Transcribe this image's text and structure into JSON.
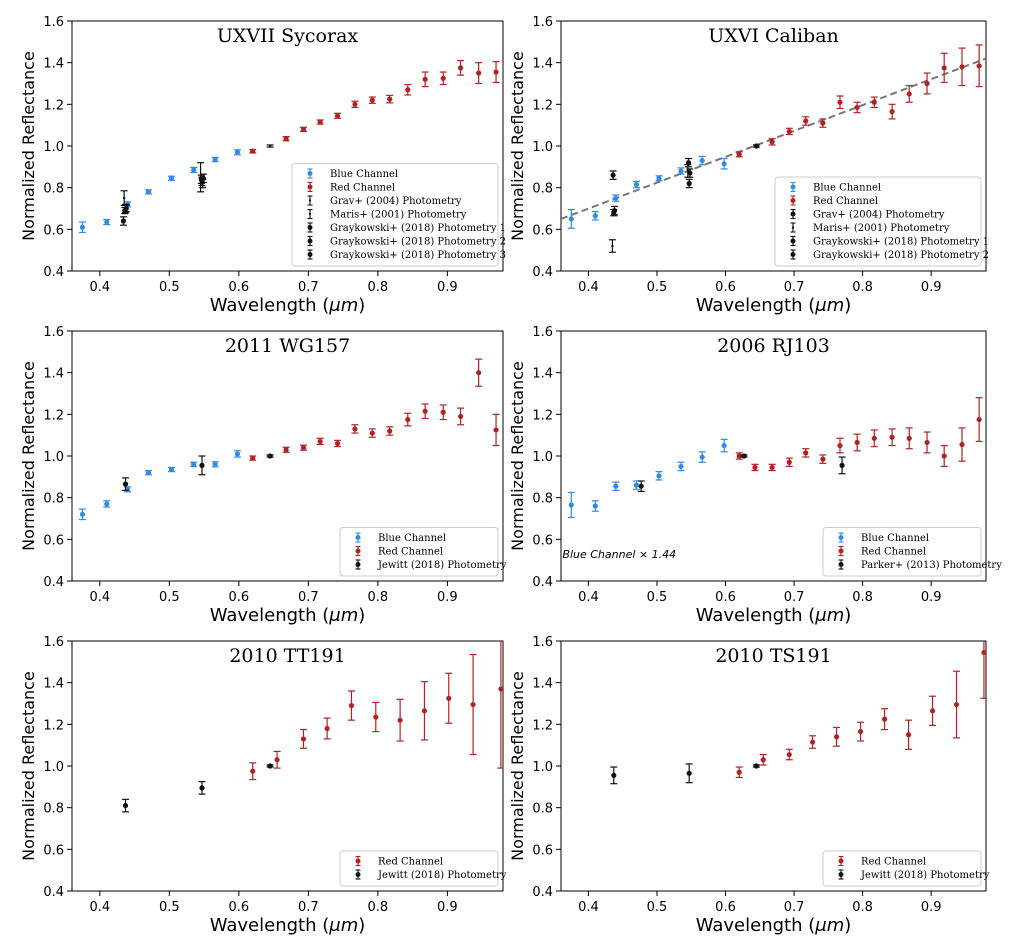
{
  "x_axis_label": "Wavelength (μm)",
  "y_axis_label": "Normalized Reflectance",
  "x_ticks": [
    0.4,
    0.5,
    0.6,
    0.7,
    0.8,
    0.9
  ],
  "y_ticks": [
    0.4,
    0.6,
    0.8,
    1.0,
    1.2,
    1.4,
    1.6
  ],
  "colors": {
    "blue": "#2e8ce8",
    "red": "#b22222",
    "black": "#111111",
    "fit_line": "#777777"
  },
  "chart_data": [
    {
      "type": "scatter",
      "title": "UXVII Sycorax",
      "xlabel": "Wavelength (μm)",
      "ylabel": "Normalized Reflectance",
      "xlim": [
        0.36,
        0.98
      ],
      "ylim": [
        0.4,
        1.6
      ],
      "legend_position": "lower-right",
      "series": [
        {
          "name": "Blue Channel",
          "color": "blue",
          "marker": "dot",
          "x": [
            0.375,
            0.41,
            0.44,
            0.47,
            0.503,
            0.535,
            0.566,
            0.598
          ],
          "y": [
            0.61,
            0.635,
            0.72,
            0.78,
            0.845,
            0.885,
            0.935,
            0.97
          ],
          "err": [
            0.025,
            0.012,
            0.012,
            0.01,
            0.01,
            0.012,
            0.01,
            0.012
          ]
        },
        {
          "name": "Red Channel",
          "color": "red",
          "marker": "dot",
          "x": [
            0.62,
            0.668,
            0.693,
            0.717,
            0.742,
            0.767,
            0.792,
            0.817,
            0.843,
            0.868,
            0.894,
            0.919,
            0.945,
            0.97
          ],
          "y": [
            0.975,
            1.035,
            1.08,
            1.115,
            1.145,
            1.2,
            1.22,
            1.225,
            1.27,
            1.32,
            1.325,
            1.375,
            1.35,
            1.355
          ],
          "err": [
            0.008,
            0.01,
            0.01,
            0.01,
            0.012,
            0.015,
            0.015,
            0.018,
            0.025,
            0.035,
            0.03,
            0.035,
            0.05,
            0.05
          ]
        },
        {
          "name": "Grav+ (2004) Photometry",
          "color": "black",
          "marker": "bar",
          "x": [
            0.435,
            0.545,
            0.645
          ],
          "y": [
            0.75,
            0.85,
            1.0
          ],
          "err": [
            0.035,
            0.07,
            0.005
          ]
        },
        {
          "name": "Maris+ (2001) Photometry",
          "color": "black",
          "marker": "bar",
          "x": [
            0.437,
            0.548
          ],
          "y": [
            0.7,
            0.82
          ],
          "err": [
            0.02,
            0.02
          ]
        },
        {
          "name": "Graykowski+ (2018) Photometry 1",
          "color": "black",
          "marker": "dot",
          "x": [
            0.436,
            0.546
          ],
          "y": [
            0.69,
            0.84
          ],
          "err": [
            0.015,
            0.02
          ]
        },
        {
          "name": "Graykowski+ (2018) Photometry 2",
          "color": "black",
          "marker": "dot",
          "x": [
            0.438,
            0.547
          ],
          "y": [
            0.7,
            0.83
          ],
          "err": [
            0.015,
            0.02
          ]
        },
        {
          "name": "Graykowski+ (2018) Photometry 3",
          "color": "black",
          "marker": "dot",
          "x": [
            0.434,
            0.549
          ],
          "y": [
            0.64,
            0.845
          ],
          "err": [
            0.02,
            0.02
          ]
        }
      ]
    },
    {
      "type": "scatter",
      "title": "UXVI Caliban",
      "xlabel": "Wavelength (μm)",
      "ylabel": "Normalized Reflectance",
      "xlim": [
        0.36,
        0.98
      ],
      "ylim": [
        0.4,
        1.6
      ],
      "legend_position": "lower-right",
      "fit_line": {
        "x": [
          0.36,
          0.98
        ],
        "y": [
          0.65,
          1.42
        ]
      },
      "series": [
        {
          "name": "Blue Channel",
          "color": "blue",
          "marker": "dot",
          "x": [
            0.375,
            0.41,
            0.44,
            0.47,
            0.503,
            0.535,
            0.566,
            0.598
          ],
          "y": [
            0.65,
            0.665,
            0.75,
            0.815,
            0.845,
            0.88,
            0.93,
            0.915
          ],
          "err": [
            0.045,
            0.02,
            0.015,
            0.015,
            0.012,
            0.015,
            0.02,
            0.025
          ]
        },
        {
          "name": "Red Channel",
          "color": "red",
          "marker": "dot",
          "x": [
            0.62,
            0.668,
            0.693,
            0.717,
            0.742,
            0.767,
            0.792,
            0.817,
            0.843,
            0.868,
            0.894,
            0.919,
            0.945,
            0.97
          ],
          "y": [
            0.96,
            1.02,
            1.07,
            1.12,
            1.11,
            1.21,
            1.185,
            1.21,
            1.165,
            1.25,
            1.3,
            1.375,
            1.38,
            1.385
          ],
          "err": [
            0.012,
            0.015,
            0.015,
            0.02,
            0.02,
            0.03,
            0.025,
            0.025,
            0.035,
            0.04,
            0.05,
            0.07,
            0.09,
            0.1
          ]
        },
        {
          "name": "Grav+ (2004) Photometry",
          "color": "black",
          "marker": "dot",
          "x": [
            0.437,
            0.547,
            0.645
          ],
          "y": [
            0.68,
            0.82,
            1.0
          ],
          "err": [
            0.015,
            0.02,
            0.005
          ]
        },
        {
          "name": "Maris+ (2001) Photometry",
          "color": "black",
          "marker": "bar",
          "x": [
            0.435,
            0.545
          ],
          "y": [
            0.52,
            0.88
          ],
          "err": [
            0.03,
            0.03
          ]
        },
        {
          "name": "Graykowski+ (2018) Photometry 1",
          "color": "black",
          "marker": "dot",
          "x": [
            0.436,
            0.546
          ],
          "y": [
            0.86,
            0.92
          ],
          "err": [
            0.02,
            0.02
          ]
        },
        {
          "name": "Graykowski+ (2018) Photometry 2",
          "color": "black",
          "marker": "dot",
          "x": [
            0.438,
            0.548
          ],
          "y": [
            0.69,
            0.87
          ],
          "err": [
            0.02,
            0.02
          ]
        }
      ]
    },
    {
      "type": "scatter",
      "title": "2011 WG157",
      "xlabel": "Wavelength (μm)",
      "ylabel": "Normalized Reflectance",
      "xlim": [
        0.36,
        0.98
      ],
      "ylim": [
        0.4,
        1.6
      ],
      "legend_position": "lower-right",
      "series": [
        {
          "name": "Blue Channel",
          "color": "blue",
          "marker": "dot",
          "x": [
            0.375,
            0.41,
            0.44,
            0.47,
            0.503,
            0.535,
            0.566,
            0.598
          ],
          "y": [
            0.72,
            0.77,
            0.84,
            0.92,
            0.935,
            0.96,
            0.96,
            1.01
          ],
          "err": [
            0.025,
            0.015,
            0.012,
            0.01,
            0.01,
            0.01,
            0.012,
            0.015
          ]
        },
        {
          "name": "Red Channel",
          "color": "red",
          "marker": "dot",
          "x": [
            0.62,
            0.668,
            0.693,
            0.717,
            0.742,
            0.767,
            0.792,
            0.817,
            0.843,
            0.868,
            0.894,
            0.919,
            0.945,
            0.97
          ],
          "y": [
            0.99,
            1.03,
            1.04,
            1.07,
            1.06,
            1.13,
            1.11,
            1.12,
            1.175,
            1.215,
            1.21,
            1.19,
            1.4,
            1.125
          ],
          "err": [
            0.01,
            0.012,
            0.012,
            0.015,
            0.015,
            0.02,
            0.02,
            0.02,
            0.03,
            0.035,
            0.035,
            0.04,
            0.065,
            0.075
          ]
        },
        {
          "name": "Jewitt (2018) Photometry",
          "color": "black",
          "marker": "dot",
          "x": [
            0.437,
            0.547,
            0.645
          ],
          "y": [
            0.865,
            0.955,
            1.0
          ],
          "err": [
            0.03,
            0.045,
            0.005
          ]
        }
      ]
    },
    {
      "type": "scatter",
      "title": "2006 RJ103",
      "xlabel": "Wavelength (μm)",
      "ylabel": "Normalized Reflectance",
      "xlim": [
        0.36,
        0.98
      ],
      "ylim": [
        0.4,
        1.6
      ],
      "legend_position": "lower-right",
      "annotation": "Blue Channel × 1.44",
      "series": [
        {
          "name": "Blue Channel",
          "color": "blue",
          "marker": "dot",
          "x": [
            0.375,
            0.41,
            0.44,
            0.47,
            0.503,
            0.535,
            0.566,
            0.598
          ],
          "y": [
            0.765,
            0.76,
            0.855,
            0.86,
            0.905,
            0.95,
            0.995,
            1.05
          ],
          "err": [
            0.06,
            0.025,
            0.02,
            0.02,
            0.02,
            0.02,
            0.025,
            0.03
          ]
        },
        {
          "name": "Red Channel",
          "color": "red",
          "marker": "dot",
          "x": [
            0.62,
            0.643,
            0.668,
            0.693,
            0.717,
            0.742,
            0.767,
            0.792,
            0.817,
            0.843,
            0.868,
            0.894,
            0.919,
            0.945,
            0.97
          ],
          "y": [
            1.0,
            0.945,
            0.945,
            0.97,
            1.015,
            0.985,
            1.05,
            1.065,
            1.085,
            1.09,
            1.085,
            1.065,
            1.0,
            1.055,
            1.175
          ],
          "err": [
            0.015,
            0.015,
            0.015,
            0.02,
            0.02,
            0.02,
            0.035,
            0.04,
            0.04,
            0.04,
            0.05,
            0.05,
            0.05,
            0.08,
            0.105
          ]
        },
        {
          "name": "Parker+ (2013) Photometry",
          "color": "black",
          "marker": "dot",
          "x": [
            0.477,
            0.627,
            0.77
          ],
          "y": [
            0.855,
            1.0,
            0.955
          ],
          "err": [
            0.025,
            0.005,
            0.04
          ]
        }
      ]
    },
    {
      "type": "scatter",
      "title": "2010 TT191",
      "xlabel": "Wavelength (μm)",
      "ylabel": "Normalized Reflectance",
      "xlim": [
        0.36,
        0.98
      ],
      "ylim": [
        0.4,
        1.6
      ],
      "legend_position": "lower-right",
      "series": [
        {
          "name": "Red Channel",
          "color": "red",
          "marker": "dot",
          "x": [
            0.62,
            0.655,
            0.693,
            0.727,
            0.762,
            0.797,
            0.832,
            0.867,
            0.902,
            0.937,
            0.977
          ],
          "y": [
            0.975,
            1.03,
            1.13,
            1.18,
            1.29,
            1.235,
            1.22,
            1.265,
            1.325,
            1.295,
            1.37
          ],
          "err": [
            0.04,
            0.04,
            0.045,
            0.05,
            0.07,
            0.07,
            0.1,
            0.14,
            0.12,
            0.24,
            0.38
          ]
        },
        {
          "name": "Jewitt (2018) Photometry",
          "color": "black",
          "marker": "dot",
          "x": [
            0.437,
            0.547,
            0.645
          ],
          "y": [
            0.81,
            0.895,
            1.0
          ],
          "err": [
            0.03,
            0.03,
            0.005
          ]
        }
      ]
    },
    {
      "type": "scatter",
      "title": "2010 TS191",
      "xlabel": "Wavelength (μm)",
      "ylabel": "Normalized Reflectance",
      "xlim": [
        0.36,
        0.98
      ],
      "ylim": [
        0.4,
        1.6
      ],
      "legend_position": "lower-right",
      "series": [
        {
          "name": "Red Channel",
          "color": "red",
          "marker": "dot",
          "x": [
            0.62,
            0.655,
            0.693,
            0.727,
            0.762,
            0.797,
            0.832,
            0.867,
            0.902,
            0.937,
            0.977
          ],
          "y": [
            0.97,
            1.03,
            1.055,
            1.115,
            1.14,
            1.165,
            1.225,
            1.15,
            1.265,
            1.295,
            1.545
          ],
          "err": [
            0.025,
            0.025,
            0.025,
            0.03,
            0.045,
            0.045,
            0.05,
            0.07,
            0.07,
            0.16,
            0.22
          ]
        },
        {
          "name": "Jewitt (2018) Photometry",
          "color": "black",
          "marker": "dot",
          "x": [
            0.437,
            0.547,
            0.645
          ],
          "y": [
            0.955,
            0.965,
            1.0
          ],
          "err": [
            0.04,
            0.045,
            0.005
          ]
        }
      ]
    }
  ]
}
